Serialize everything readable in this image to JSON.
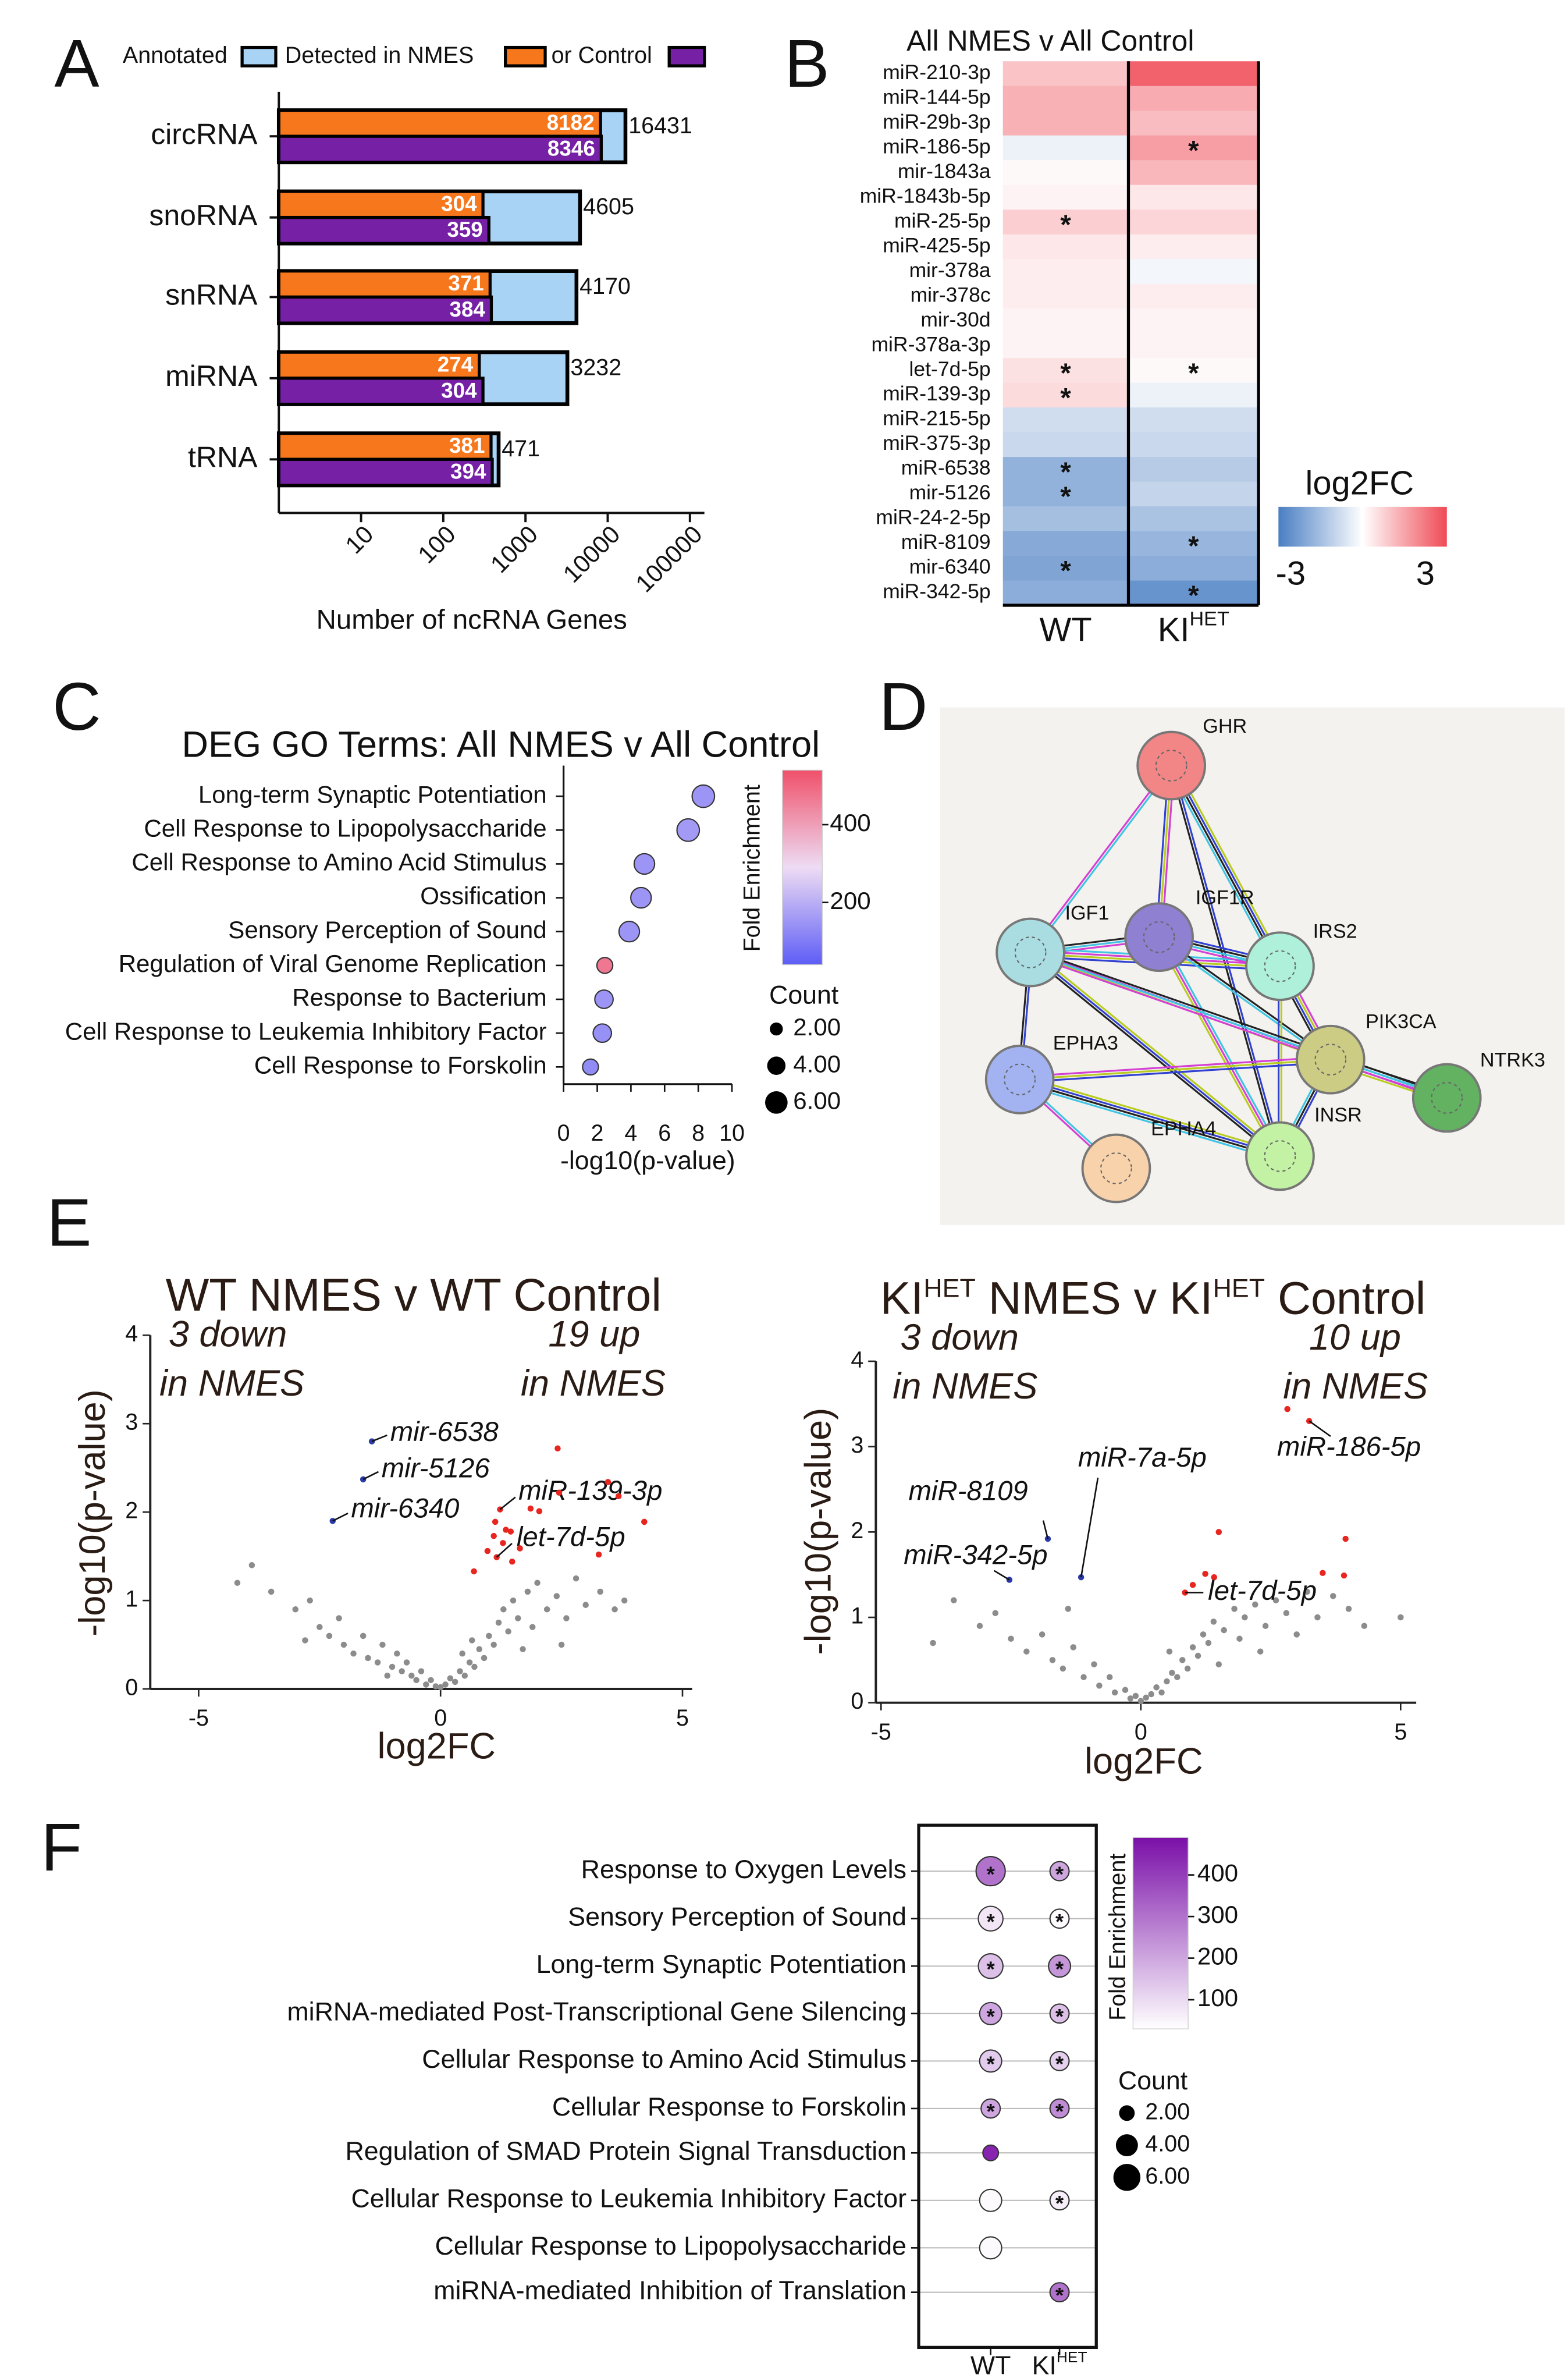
{
  "panel_labels": [
    "A",
    "B",
    "C",
    "D",
    "E",
    "F"
  ],
  "chart_data": [
    {
      "type": "hbar_log",
      "categories": [
        "circRNA",
        "snoRNA",
        "snRNA",
        "miRNA",
        "tRNA"
      ],
      "series": [
        {
          "name": "Annotated",
          "color": "#a9d3f5",
          "values": [
            16431,
            4605,
            4170,
            3232,
            471
          ]
        },
        {
          "name": "Detected in NMES",
          "color": "#f7771c",
          "values": [
            8182,
            304,
            371,
            274,
            381
          ]
        },
        {
          "name": "or Control",
          "color": "#7620a6",
          "values": [
            8346,
            359,
            384,
            304,
            394
          ]
        }
      ],
      "xlabel": "Number of ncRNA Genes",
      "log_x": true,
      "xlim": [
        1,
        150000
      ],
      "xticks": [
        10,
        100,
        1000,
        10000,
        100000
      ]
    },
    {
      "type": "heatmap",
      "title": "All NMES v All Control",
      "rows": [
        "miR-210-3p",
        "miR-144-5p",
        "miR-29b-3p",
        "miR-186-5p",
        "mir-1843a",
        "miR-1843b-5p",
        "miR-25-5p",
        "miR-425-5p",
        "mir-378a",
        "mir-378c",
        "mir-30d",
        "miR-378a-3p",
        "let-7d-5p",
        "miR-139-3p",
        "miR-215-5p",
        "miR-375-3p",
        "miR-6538",
        "mir-5126",
        "miR-24-2-5p",
        "miR-8109",
        "mir-6340",
        "miR-342-5p"
      ],
      "series": [
        {
          "name": "WT",
          "values": [
            1.0,
            1.3,
            1.3,
            -0.3,
            0.1,
            0.2,
            0.8,
            0.4,
            0.3,
            0.3,
            0.2,
            0.2,
            0.5,
            0.6,
            -0.8,
            -0.9,
            -1.8,
            -1.8,
            -1.5,
            -2.0,
            -2.1,
            -1.9
          ],
          "stars": [
            null,
            null,
            null,
            null,
            null,
            null,
            "*",
            null,
            null,
            null,
            null,
            null,
            "*",
            "*",
            null,
            null,
            "*",
            "*",
            null,
            null,
            "*",
            null
          ]
        },
        {
          "name": "KI",
          "name_superscript": "HET",
          "values": [
            2.6,
            1.4,
            1.1,
            1.6,
            1.2,
            0.4,
            0.7,
            0.3,
            -0.2,
            0.3,
            0.2,
            0.2,
            0.1,
            -0.3,
            -0.8,
            -0.9,
            -1.2,
            -1.0,
            -1.4,
            -1.7,
            -1.9,
            -2.5
          ],
          "stars": [
            null,
            null,
            null,
            "*",
            null,
            null,
            null,
            null,
            null,
            null,
            null,
            null,
            "*",
            null,
            null,
            null,
            null,
            null,
            null,
            "*",
            null,
            "*"
          ]
        }
      ],
      "colorbar_label": "log2FC",
      "clim": [
        -3,
        3
      ],
      "cticks": [
        -3,
        3
      ],
      "colormap": [
        "#4a7ec3",
        "#ffffff",
        "#ef4a55"
      ]
    },
    {
      "type": "bubble",
      "title": "DEG GO Terms: All NMES v All Control",
      "categories": [
        "Long-term Synaptic Potentiation",
        "Cell Response to Lipopolysaccharide",
        "Cell Response to Amino Acid Stimulus",
        "Ossification",
        "Sensory Perception of Sound",
        "Regulation of Viral Genome Replication",
        "Response to Bacterium",
        "Cell Response to Leukemia Inhibitory Factor",
        "Cell Response to Forskolin"
      ],
      "x": [
        8.3,
        7.4,
        4.8,
        4.6,
        3.9,
        2.45,
        2.4,
        2.3,
        1.6
      ],
      "fold_enrichment": [
        150,
        160,
        150,
        150,
        150,
        470,
        150,
        140,
        130
      ],
      "count": [
        6,
        6,
        5,
        5,
        5,
        3,
        4,
        4,
        3
      ],
      "xlabel": "-log10(p-value)",
      "xlim": [
        0,
        10
      ],
      "xticks": [
        0,
        2,
        4,
        6,
        8,
        10
      ],
      "colorbar_label": "Fold Enrichment",
      "clim": [
        40,
        540
      ],
      "cticks": [
        200,
        400
      ],
      "colormap": [
        "#5d5df6",
        "#eedcf4",
        "#f0506a"
      ],
      "size_legend_title": "Count",
      "size_ticks": [
        {
          "value": 2,
          "label": "2.00"
        },
        {
          "value": 4,
          "label": "4.00"
        },
        {
          "value": 6,
          "label": "6.00"
        }
      ]
    },
    {
      "type": "volcano",
      "title_parts": [
        {
          "text": "WT NMES v WT Control"
        }
      ],
      "annotations": [
        "3 down",
        "in NMES",
        "19 up",
        "in NMES"
      ],
      "xlabel": "log2FC",
      "ylabel": "-log10(p-value)",
      "xlim": [
        -6,
        5.2
      ],
      "ylim": [
        0,
        4
      ],
      "xticks": [
        -5,
        0,
        5
      ],
      "yticks": [
        0,
        1,
        2,
        3,
        4
      ],
      "series": [
        {
          "color": "#8c8c8c",
          "x": [
            -3.9,
            -3.5,
            -3,
            -2.7,
            -2.5,
            -2.3,
            -2.1,
            -2,
            -1.8,
            -1.6,
            -1.5,
            -1.3,
            -1.2,
            -1.0,
            -0.9,
            -0.8,
            -0.7,
            -0.6,
            -0.5,
            -0.4,
            -0.3,
            -0.2,
            -0.1,
            0,
            0.1,
            0.2,
            0.3,
            0.4,
            0.5,
            0.6,
            0.7,
            0.8,
            0.9,
            1.0,
            1.1,
            1.2,
            1.3,
            1.4,
            1.5,
            1.6,
            1.8,
            1.9,
            2.0,
            2.2,
            2.4,
            2.6,
            2.8,
            3.0,
            3.3,
            3.6,
            3.8,
            -4.2,
            -1.1,
            0.45,
            0.65,
            1.7,
            -2.8,
            2.5
          ],
          "values": [
            1.4,
            1.1,
            0.9,
            1.0,
            0.7,
            0.6,
            0.8,
            0.5,
            0.4,
            0.6,
            0.35,
            0.3,
            0.5,
            0.25,
            0.4,
            0.2,
            0.3,
            0.15,
            0.1,
            0.2,
            0.05,
            0.1,
            0.03,
            0.02,
            0.05,
            0.12,
            0.08,
            0.2,
            0.15,
            0.3,
            0.25,
            0.45,
            0.35,
            0.6,
            0.5,
            0.75,
            0.9,
            0.65,
            1.0,
            0.8,
            1.1,
            0.7,
            1.2,
            0.9,
            1.05,
            0.8,
            1.25,
            0.95,
            1.1,
            0.9,
            1.0,
            1.2,
            0.15,
            0.4,
            0.55,
            0.45,
            0.55,
            0.5
          ]
        },
        {
          "color": "#e8251f",
          "x": [
            2.42,
            1.23,
            1.13,
            1.35,
            1.1,
            1.29,
            1.16,
            0.69,
            1.86,
            2.04,
            1.64,
            3.46,
            3.68,
            4.21,
            3.27,
            1.45,
            1.48,
            0.97,
            2.45
          ],
          "values": [
            2.72,
            2.03,
            1.89,
            1.8,
            1.73,
            1.65,
            1.49,
            1.33,
            2.04,
            2.01,
            1.59,
            2.34,
            2.18,
            1.89,
            1.52,
            1.78,
            1.44,
            1.56,
            2.22
          ],
          "labels": [
            null,
            "miR-139-3p",
            null,
            null,
            null,
            null,
            "let-7d-5p",
            null,
            null,
            null,
            null,
            null,
            null,
            null,
            null,
            null,
            null,
            null,
            null
          ]
        },
        {
          "color": "#2a3aa8",
          "x": [
            -1.42,
            -1.6,
            -2.23
          ],
          "values": [
            2.8,
            2.37,
            1.9
          ],
          "labels": [
            "mir-6538",
            "mir-5126",
            "mir-6340"
          ]
        }
      ]
    },
    {
      "type": "volcano",
      "title_parts": [
        {
          "text": "KI"
        },
        {
          "text": "HET",
          "sup": true
        },
        {
          "text": " NMES v KI"
        },
        {
          "text": "HET",
          "sup": true
        },
        {
          "text": " Control"
        }
      ],
      "annotations": [
        "3 down",
        "in NMES",
        "10 up",
        "in NMES"
      ],
      "xlabel": "log2FC",
      "ylabel": "-log10(p-value)",
      "xlim": [
        -5.1,
        5.3
      ],
      "ylim": [
        0,
        4
      ],
      "xticks": [
        -5,
        0,
        5
      ],
      "yticks": [
        0,
        1,
        2,
        3,
        4
      ],
      "series": [
        {
          "color": "#8c8c8c",
          "x": [
            -3.6,
            -3.1,
            -2.8,
            -2.5,
            -2.2,
            -1.9,
            -1.7,
            -1.5,
            -1.3,
            -1.1,
            -0.9,
            -0.8,
            -0.6,
            -0.5,
            -0.3,
            -0.2,
            -0.1,
            0,
            0.1,
            0.2,
            0.3,
            0.4,
            0.5,
            0.6,
            0.7,
            0.8,
            0.9,
            1.0,
            1.1,
            1.2,
            1.3,
            1.4,
            1.6,
            1.8,
            1.9,
            2.0,
            2.2,
            2.4,
            2.6,
            2.8,
            3.0,
            3.2,
            3.4,
            3.7,
            4.0,
            4.3,
            5.0,
            -1.4,
            -4.0,
            0.55,
            1.5,
            2.3
          ],
          "values": [
            1.2,
            0.9,
            1.05,
            0.75,
            0.6,
            0.8,
            0.5,
            0.4,
            0.65,
            0.3,
            0.45,
            0.2,
            0.3,
            0.12,
            0.15,
            0.05,
            0.08,
            0.02,
            0.06,
            0.1,
            0.18,
            0.12,
            0.25,
            0.35,
            0.3,
            0.5,
            0.4,
            0.65,
            0.55,
            0.8,
            0.7,
            0.95,
            0.85,
            1.1,
            0.75,
            1.0,
            1.15,
            0.9,
            1.2,
            1.05,
            0.8,
            1.3,
            1.0,
            1.25,
            1.1,
            0.9,
            1.0,
            1.1,
            0.7,
            0.6,
            0.45,
            0.6
          ]
        },
        {
          "color": "#e8251f",
          "x": [
            3.24,
            2.82,
            1.5,
            3.94,
            3.5,
            3.91,
            1.24,
            1.41,
            0.85,
            1.0
          ],
          "values": [
            3.3,
            3.44,
            2.0,
            1.92,
            1.52,
            1.49,
            1.51,
            1.47,
            1.29,
            1.38
          ],
          "labels": [
            "miR-186-5p",
            null,
            null,
            null,
            null,
            null,
            null,
            null,
            "let-7d-5p",
            null
          ]
        },
        {
          "color": "#2a3aa8",
          "x": [
            -1.79,
            -1.15,
            -2.53
          ],
          "values": [
            1.92,
            1.47,
            1.44
          ],
          "labels": [
            "miR-8109",
            "miR-7a-5p",
            "miR-342-5p"
          ]
        }
      ]
    },
    {
      "type": "dotplot",
      "categories": [
        "Response to Oxygen Levels",
        "Sensory Perception of Sound",
        "Long-term Synaptic Potentiation",
        "miRNA-mediated Post-Transcriptional Gene Silencing",
        "Cellular Response to Amino Acid Stimulus",
        "Cellular Response to Forskolin",
        "Regulation of SMAD Protein Signal Transduction",
        "Cellular Response to Leukemia Inhibitory Factor",
        "Cellular Response to Lipopolysaccharide",
        "miRNA-mediated Inhibition of Translation"
      ],
      "series": [
        {
          "name": "WT",
          "fold_enrichment": [
            300,
            80,
            150,
            200,
            130,
            200,
            450,
            40,
            40,
            null
          ],
          "count": [
            7,
            5,
            5,
            4,
            4,
            3,
            2,
            4,
            4,
            null
          ],
          "stars": [
            "*",
            "*",
            "*",
            "*",
            "*",
            "*",
            null,
            null,
            null,
            null
          ]
        },
        {
          "name": "KI",
          "name_superscript": "HET",
          "fold_enrichment": [
            200,
            40,
            230,
            150,
            120,
            250,
            null,
            60,
            null,
            300
          ],
          "count": [
            3,
            3,
            4,
            3,
            3,
            3,
            null,
            3,
            null,
            3
          ],
          "stars": [
            "*",
            "*",
            "*",
            "*",
            "*",
            "*",
            null,
            "*",
            null,
            "*"
          ]
        }
      ],
      "colorbar_label": "Fold Enrichment",
      "clim": [
        30,
        490
      ],
      "cticks": [
        100,
        200,
        300,
        400
      ],
      "colormap": [
        "#ffffff",
        "#7a0fa8"
      ],
      "size_legend_title": "Count",
      "size_ticks": [
        {
          "value": 2,
          "label": "2.00"
        },
        {
          "value": 4,
          "label": "4.00"
        },
        {
          "value": 6,
          "label": "6.00"
        }
      ]
    }
  ],
  "network": {
    "nodes": [
      {
        "label": "GHR",
        "color": "#f28585"
      },
      {
        "label": "IGF1",
        "color": "#a9dde2"
      },
      {
        "label": "IGF1R",
        "color": "#8f80d2"
      },
      {
        "label": "IRS2",
        "color": "#aef0da"
      },
      {
        "label": "PIK3CA",
        "color": "#cccc85"
      },
      {
        "label": "NTRK3",
        "color": "#62b262"
      },
      {
        "label": "EPHA3",
        "color": "#a3b3f2"
      },
      {
        "label": "EPHA4",
        "color": "#f8d2aa"
      },
      {
        "label": "INSR",
        "color": "#c4f2a4"
      }
    ]
  }
}
